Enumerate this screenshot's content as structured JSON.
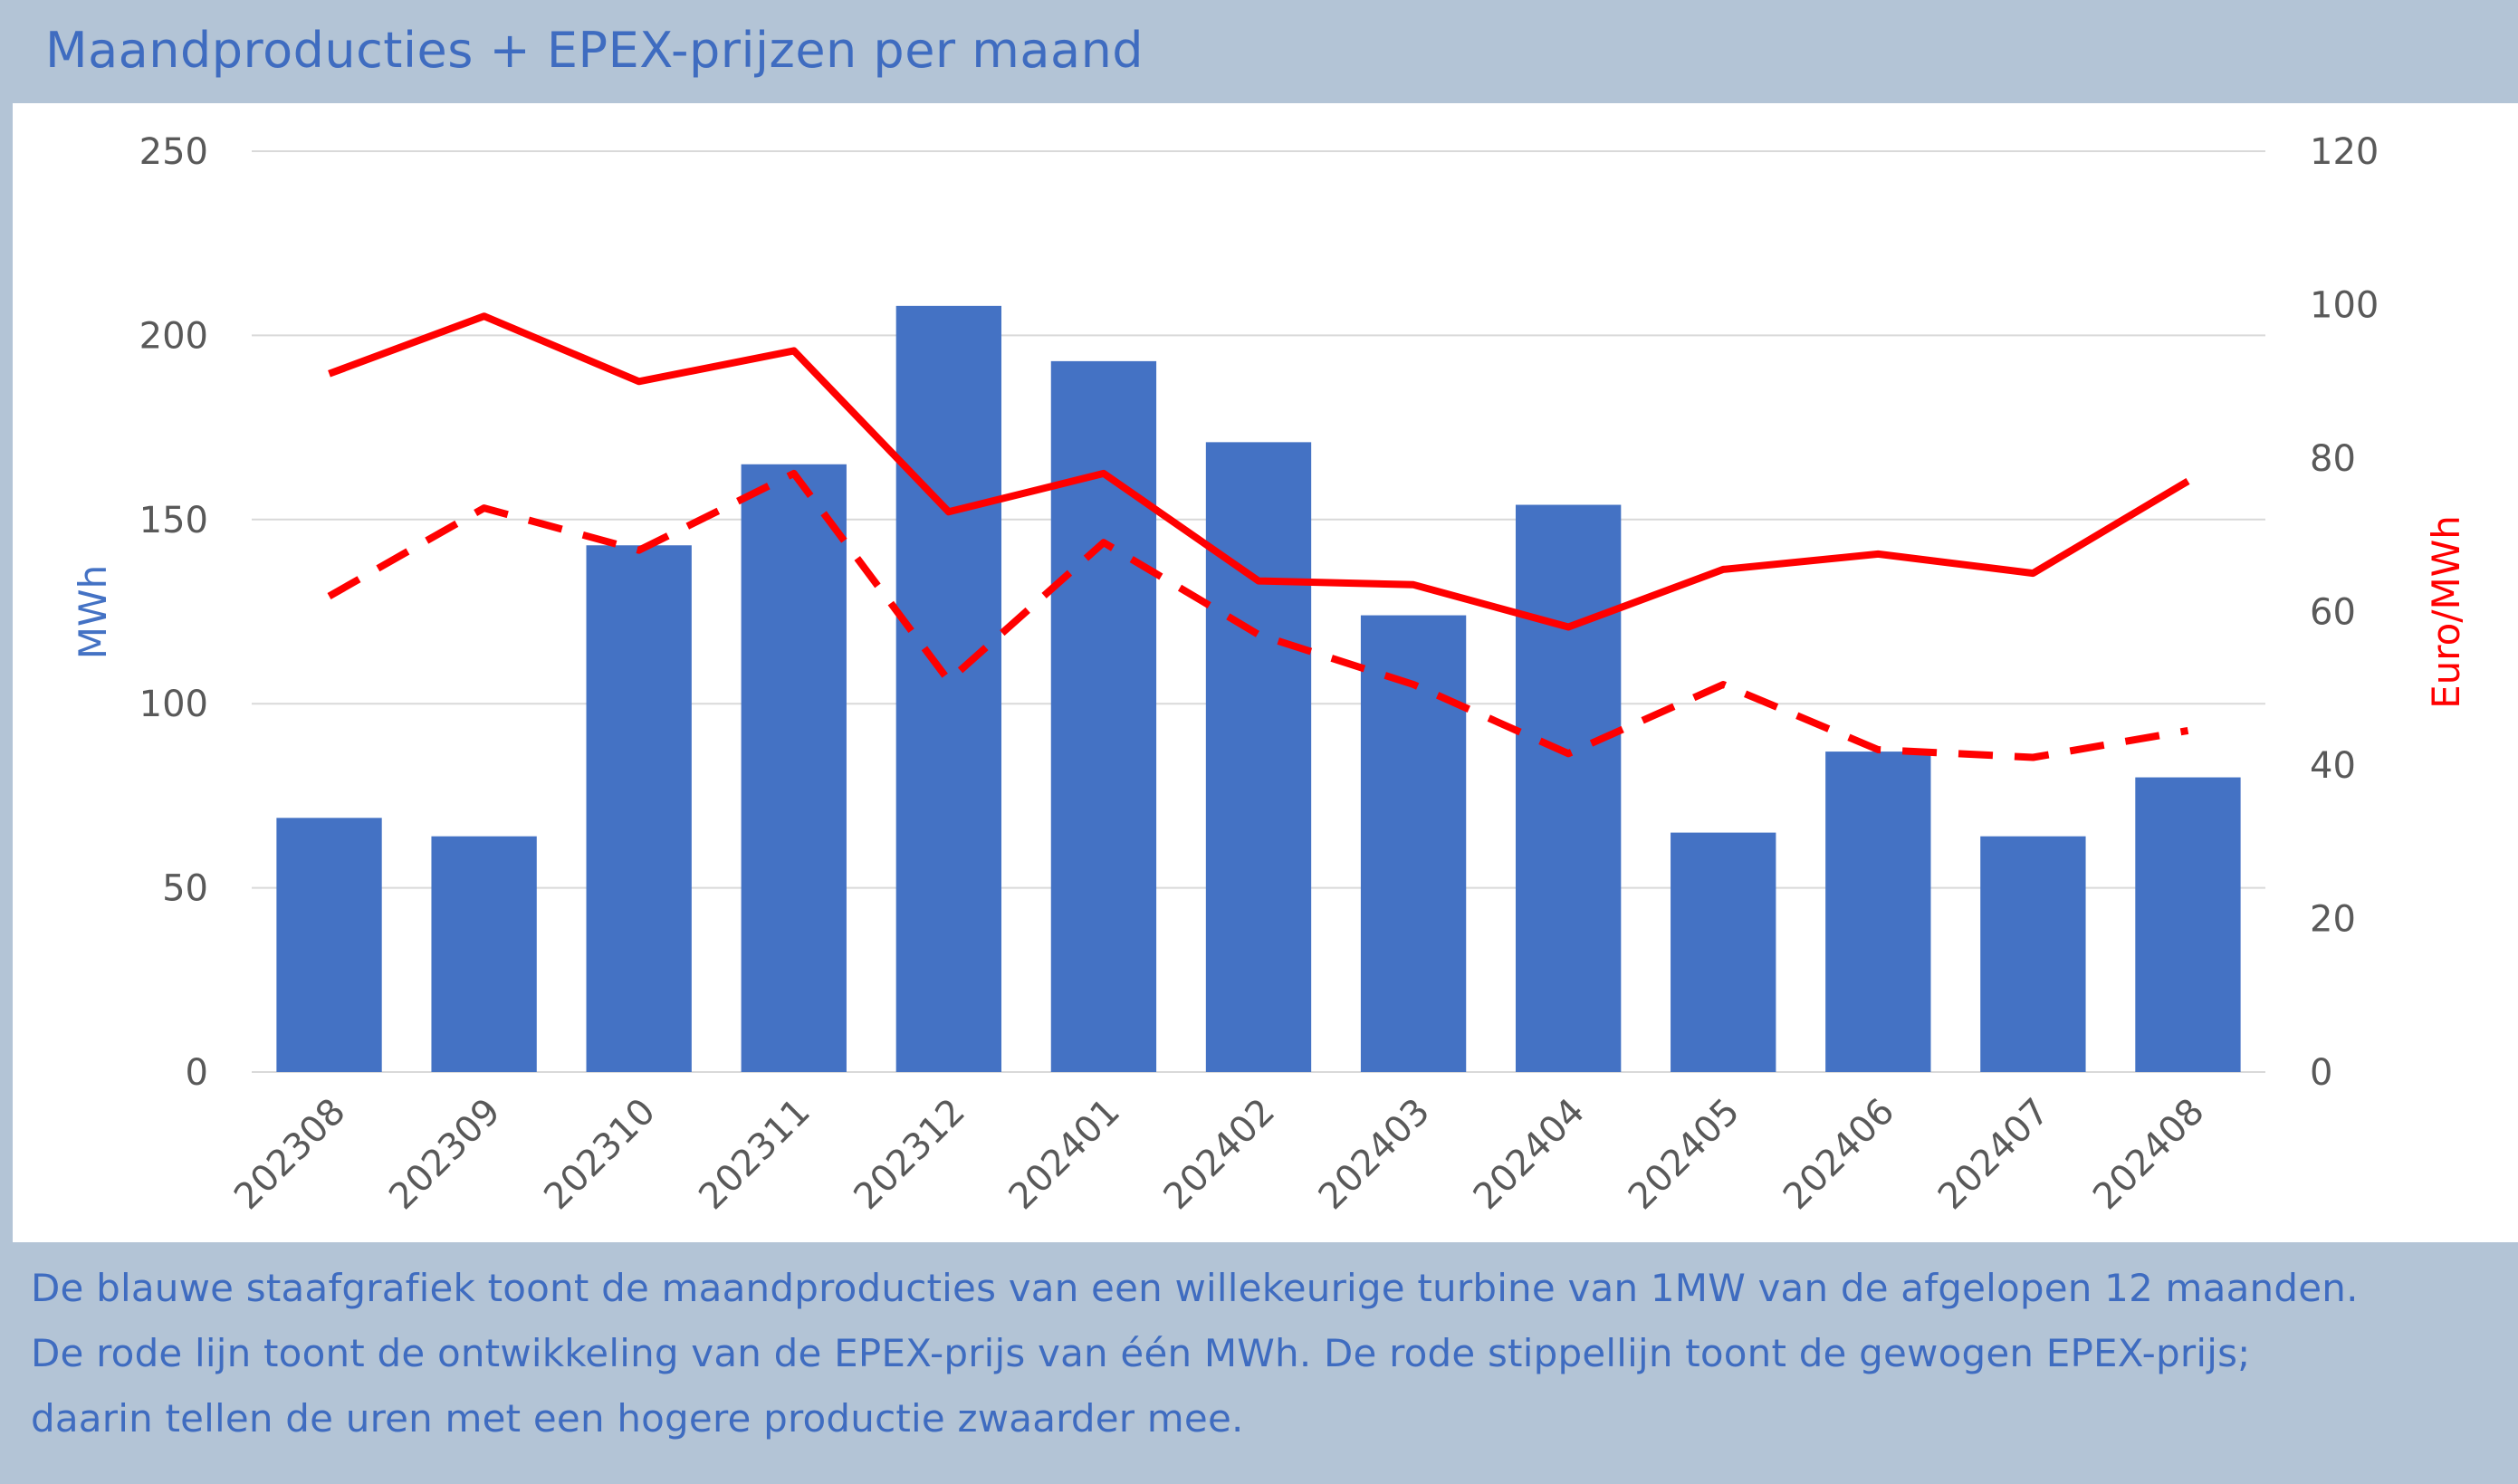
{
  "header": {
    "title": "Maandproducties + EPEX-prijzen per maand"
  },
  "chart_data": {
    "type": "bar",
    "categories": [
      "202308",
      "202309",
      "202310",
      "202311",
      "202312",
      "202401",
      "202402",
      "202403",
      "202404",
      "202405",
      "202406",
      "202407",
      "202408"
    ],
    "series": [
      {
        "type": "bar",
        "axis": "left",
        "color": "#4472c4",
        "values": [
          69,
          64,
          143,
          165,
          208,
          193,
          171,
          124,
          154,
          65,
          87,
          64,
          80
        ]
      },
      {
        "type": "line",
        "axis": "right",
        "style": "solid",
        "color": "#ff0000",
        "values": [
          91,
          98.5,
          90,
          94,
          73,
          78,
          64,
          63.5,
          58,
          65.5,
          67.5,
          65,
          77
        ]
      },
      {
        "type": "line",
        "axis": "right",
        "style": "dashed",
        "color": "#ff0000",
        "values": [
          62,
          73.5,
          68,
          78,
          51,
          69,
          57,
          50.5,
          41.5,
          50.5,
          42,
          41,
          44.5
        ]
      }
    ],
    "y_left": {
      "label": "MWh",
      "color": "#4472c4",
      "ylim": [
        0,
        250
      ],
      "ticks": [
        "0",
        "50",
        "100",
        "150",
        "200",
        "250"
      ]
    },
    "y_right": {
      "label": "Euro/MWh",
      "color": "#ff0000",
      "ylim": [
        0,
        120
      ],
      "ticks": [
        "0",
        "20",
        "40",
        "60",
        "80",
        "100",
        "120"
      ]
    },
    "grid": true,
    "x_tick_rotation": -45
  },
  "footer": {
    "lines": [
      "De blauwe staafgrafiek toont de maandproducties van een willekeurige turbine van 1MW van de afgelopen 12 maanden.",
      "De rode lijn toont de ontwikkeling van de EPEX-prijs van één MWh. De rode stippellijn toont de gewogen EPEX-prijs;",
      "daarin tellen de uren met een hogere productie zwaarder mee."
    ]
  }
}
